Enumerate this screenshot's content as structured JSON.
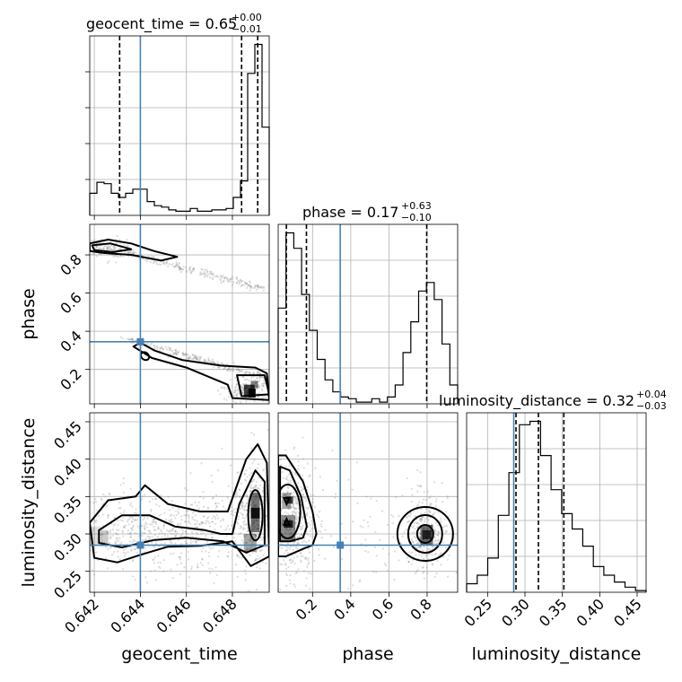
{
  "chart_data": {
    "type": "corner",
    "parameters": [
      {
        "name": "geocent_time",
        "xlabel": "geocent_time",
        "range": [
          0.6418,
          0.6496
        ],
        "ticks": [
          0.642,
          0.644,
          0.646,
          0.648
        ],
        "tick_labels": [
          "0.642",
          "0.644",
          "0.646",
          "0.648"
        ],
        "title_main": "geocent_time = 0.65",
        "title_plus": "+0.00",
        "title_minus": "−0.01",
        "quantiles": [
          0.6431,
          0.6484,
          0.6491
        ],
        "truth": 0.644
      },
      {
        "name": "phase",
        "xlabel": "phase",
        "ylabel": "phase",
        "range": [
          0.02,
          0.96
        ],
        "ticks": [
          0.2,
          0.4,
          0.6,
          0.8
        ],
        "tick_labels": [
          "0.2",
          "0.4",
          "0.6",
          "0.8"
        ],
        "title_main": "phase = 0.17",
        "title_plus": "+0.63",
        "title_minus": "−0.10",
        "quantiles": [
          0.063,
          0.168,
          0.798
        ],
        "truth": 0.345
      },
      {
        "name": "luminosity_distance",
        "xlabel": "luminosity_distance",
        "ylabel": "luminosity_distance",
        "range": [
          0.222,
          0.462
        ],
        "ticks": [
          0.25,
          0.3,
          0.35,
          0.4,
          0.45
        ],
        "tick_labels": [
          "0.25",
          "0.30",
          "0.35",
          "0.40",
          "0.45"
        ],
        "title_main": "luminosity_distance = 0.32",
        "title_plus": "+0.04",
        "title_minus": "−0.03",
        "quantiles": [
          0.288,
          0.318,
          0.352
        ],
        "truth": 0.285
      }
    ],
    "histograms": [
      {
        "param": "geocent_time",
        "counts": [
          1.6,
          2.4,
          2.3,
          1.6,
          1.3,
          1.6,
          1.9,
          1.9,
          1.0,
          0.7,
          0.6,
          0.4,
          0.3,
          0.3,
          0.5,
          0.3,
          0.3,
          0.4,
          0.4,
          0.5,
          1.3,
          2.5,
          10.3,
          12.4,
          6.4
        ]
      },
      {
        "param": "phase",
        "counts": [
          5.6,
          10.0,
          9.1,
          6.4,
          4.3,
          2.6,
          1.4,
          0.7,
          0.4,
          0.3,
          0.1,
          0.1,
          0.3,
          0.1,
          0.4,
          1.1,
          3.0,
          4.8,
          6.6,
          7.1,
          6.1,
          3.5,
          1.1
        ]
      },
      {
        "param": "luminosity_distance",
        "counts": [
          0.5,
          1.0,
          2.0,
          4.5,
          7.0,
          9.8,
          10.0,
          8.0,
          6.0,
          4.6,
          3.7,
          2.7,
          1.5,
          1.0,
          0.6,
          0.3,
          0.1
        ]
      }
    ],
    "grid": true,
    "truth_color": "#4682b4",
    "contour_color": "#000000",
    "scatter_color": "#808080",
    "quantile_style": "dashed"
  }
}
